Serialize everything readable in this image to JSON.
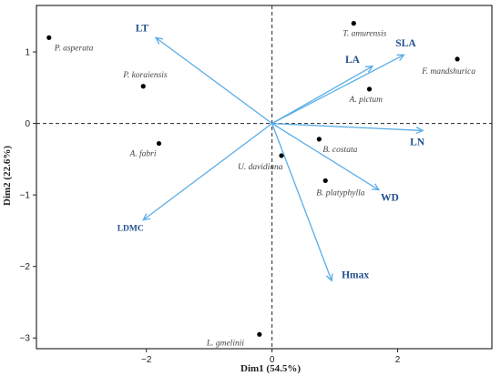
{
  "chart_data": {
    "type": "scatter",
    "subtype": "pca-biplot",
    "xlabel": "Dim1 (54.5%)",
    "ylabel": "Dim2 (22.6%)",
    "xlim": [
      -3.75,
      3.5
    ],
    "ylim": [
      -3.15,
      1.65
    ],
    "x_ticks": [
      -2,
      0,
      2
    ],
    "y_ticks": [
      -3,
      -2,
      -1,
      0,
      1
    ],
    "grid": false,
    "reference_lines": {
      "x": 0,
      "y": 0,
      "style": "dashed"
    },
    "colors": {
      "arrow": "#5aaee6",
      "trait_text": "#1f4e8c",
      "point": "#000000",
      "species_text": "#444444",
      "frame": "#000000"
    },
    "points": [
      {
        "label": "P. asperata",
        "x": -3.55,
        "y": 1.2
      },
      {
        "label": "T. amurensis",
        "x": 1.3,
        "y": 1.4
      },
      {
        "label": "F. mandshurica",
        "x": 2.95,
        "y": 0.9
      },
      {
        "label": "P. koraiensis",
        "x": -2.05,
        "y": 0.52
      },
      {
        "label": "A. pictum",
        "x": 1.55,
        "y": 0.48
      },
      {
        "label": "A. fabri",
        "x": -1.8,
        "y": -0.28
      },
      {
        "label": "B. costata",
        "x": 0.75,
        "y": -0.22
      },
      {
        "label": "U. davidiana",
        "x": 0.15,
        "y": -0.45
      },
      {
        "label": "B. platyphylla",
        "x": 0.85,
        "y": -0.8
      },
      {
        "label": "L. gmelinii",
        "x": -0.2,
        "y": -2.95
      }
    ],
    "vectors": [
      {
        "label": "LT",
        "x": -1.85,
        "y": 1.2
      },
      {
        "label": "SLA",
        "x": 2.1,
        "y": 0.96
      },
      {
        "label": "LA",
        "x": 1.6,
        "y": 0.8
      },
      {
        "label": "LN",
        "x": 2.4,
        "y": -0.1
      },
      {
        "label": "WD",
        "x": 1.7,
        "y": -0.93
      },
      {
        "label": "Hmax",
        "x": 0.95,
        "y": -2.2
      },
      {
        "label": "LDMC",
        "x": -2.05,
        "y": -1.35
      }
    ]
  }
}
